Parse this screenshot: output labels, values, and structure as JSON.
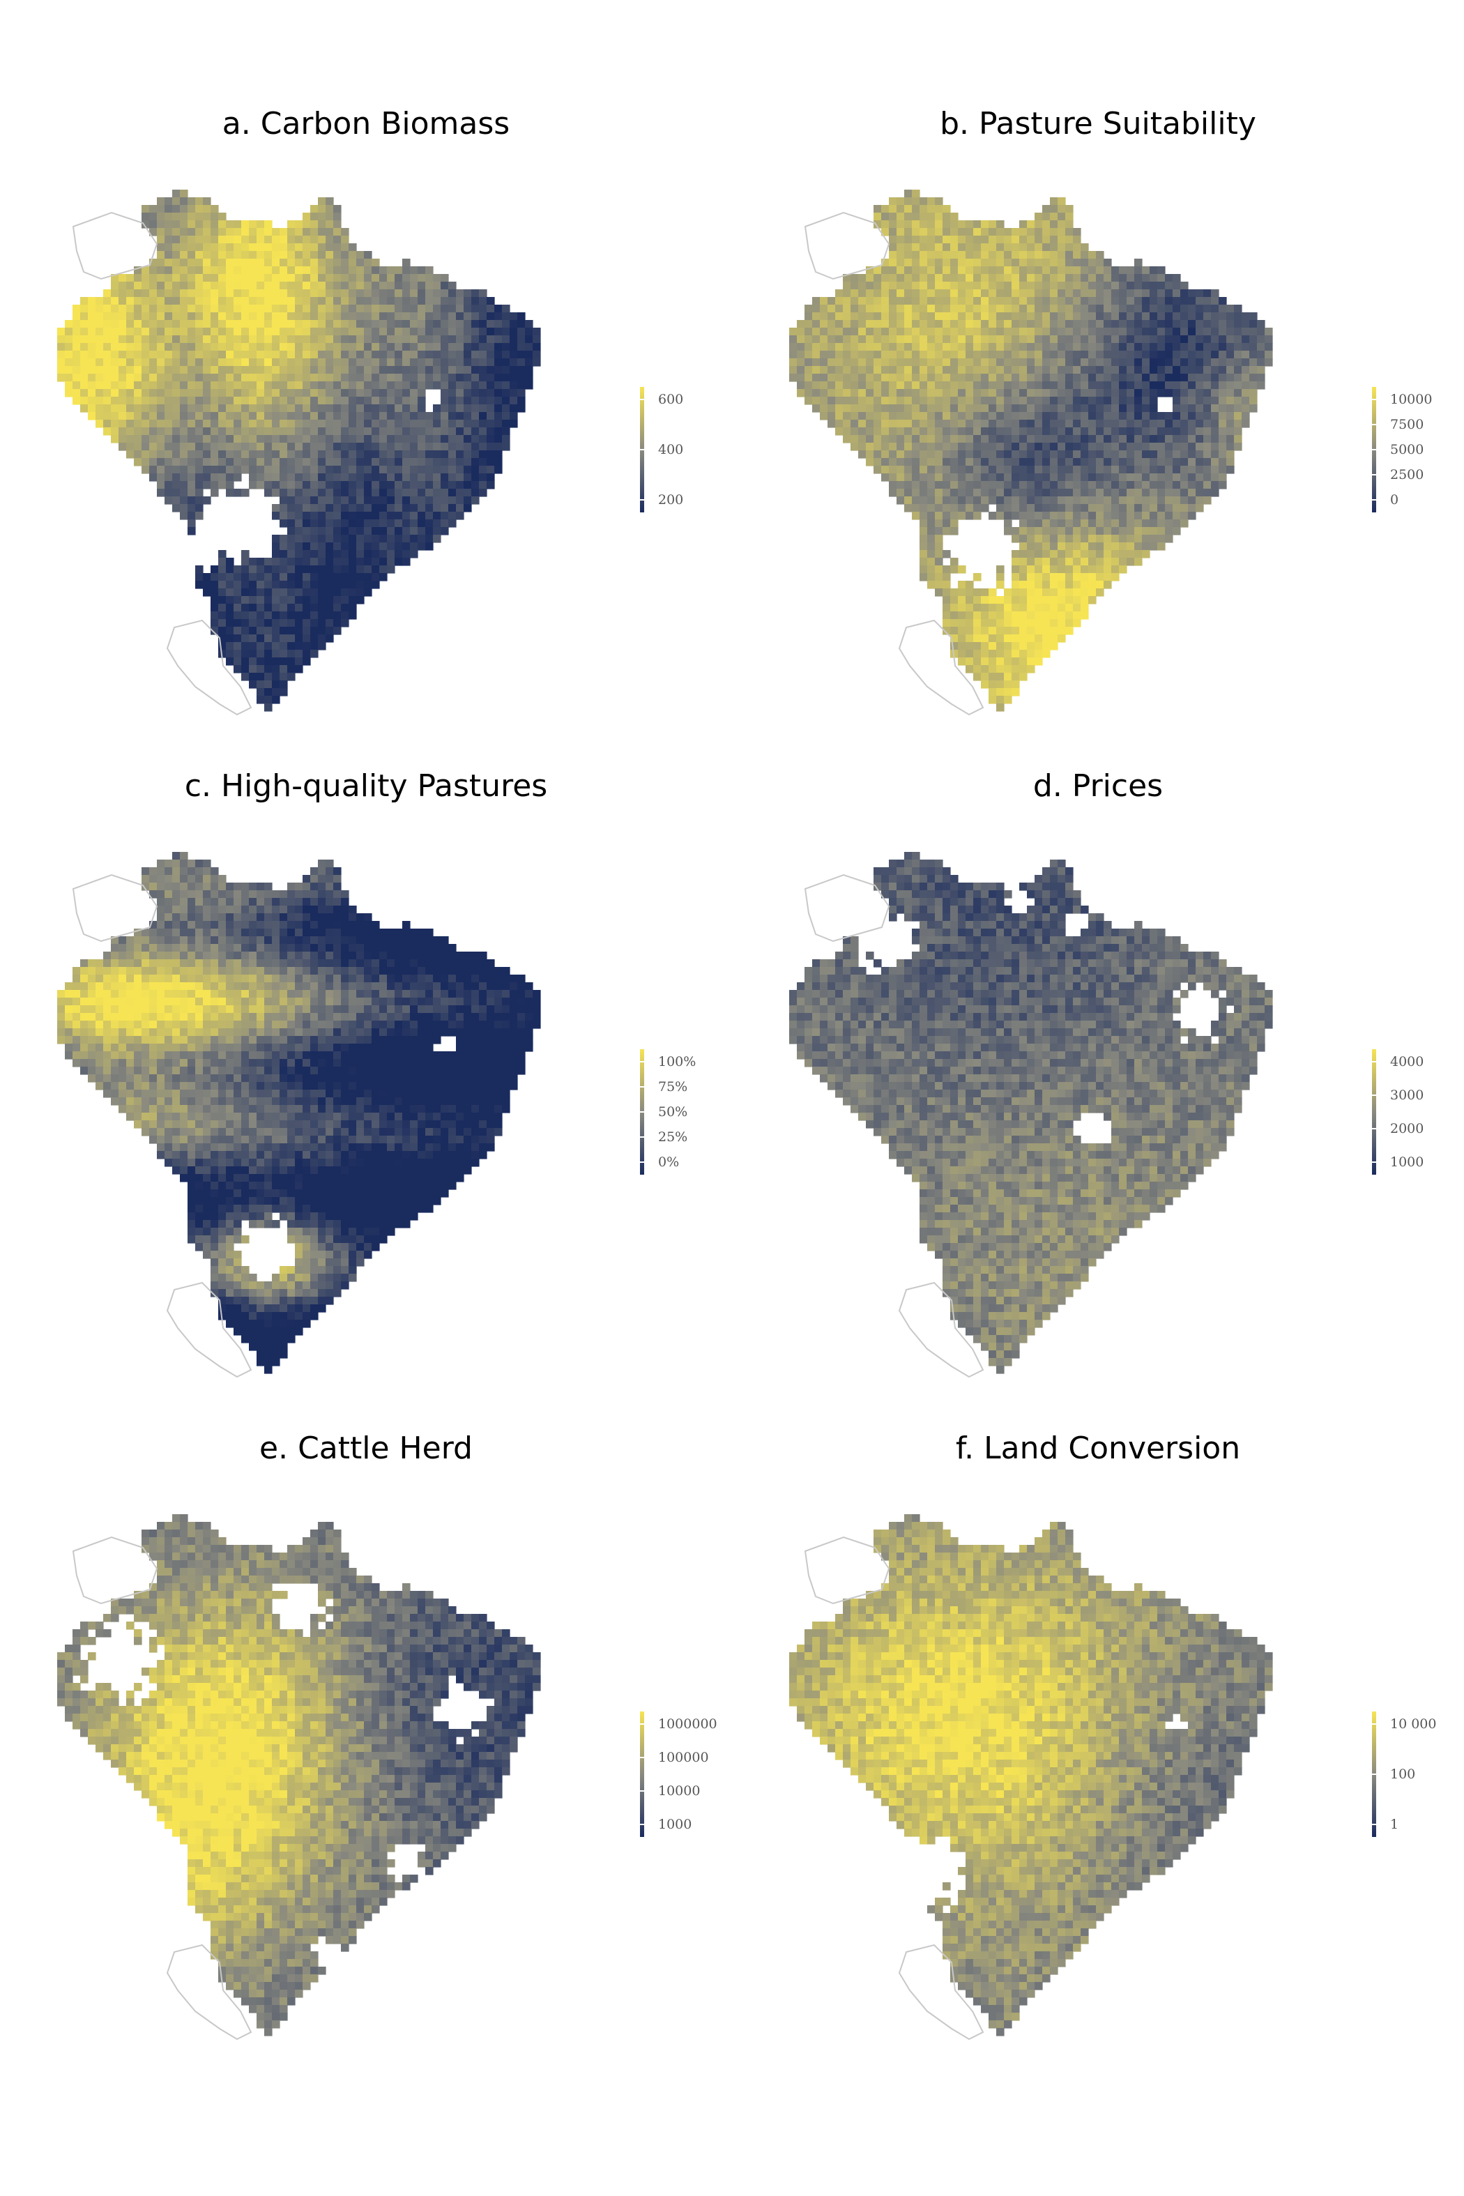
{
  "colors": {
    "low": "#1a2b5e",
    "mid": "#8a8a7f",
    "high": "#f6e454",
    "outline": "#c8c8c8",
    "background": "#ffffff"
  },
  "panels": [
    {
      "title": "a. Carbon Biomass",
      "legend": [
        "600",
        "400",
        "200"
      ],
      "pattern": "carbon"
    },
    {
      "title": "b. Pasture Suitability",
      "legend": [
        "10000",
        "7500",
        "5000",
        "2500",
        "0"
      ],
      "pattern": "pasture"
    },
    {
      "title": "c. High-quality Pastures",
      "legend": [
        "100%",
        "75%",
        "50%",
        "25%",
        "0%"
      ],
      "pattern": "hq"
    },
    {
      "title": "d. Prices",
      "legend": [
        "4000",
        "3000",
        "2000",
        "1000"
      ],
      "pattern": "prices"
    },
    {
      "title": "e. Cattle Herd",
      "legend": [
        "1000000",
        "100000",
        "10000",
        "1000"
      ],
      "pattern": "cattle"
    },
    {
      "title": "f. Land Conversion",
      "legend": [
        "10 000",
        "100",
        "1"
      ],
      "pattern": "land"
    }
  ]
}
